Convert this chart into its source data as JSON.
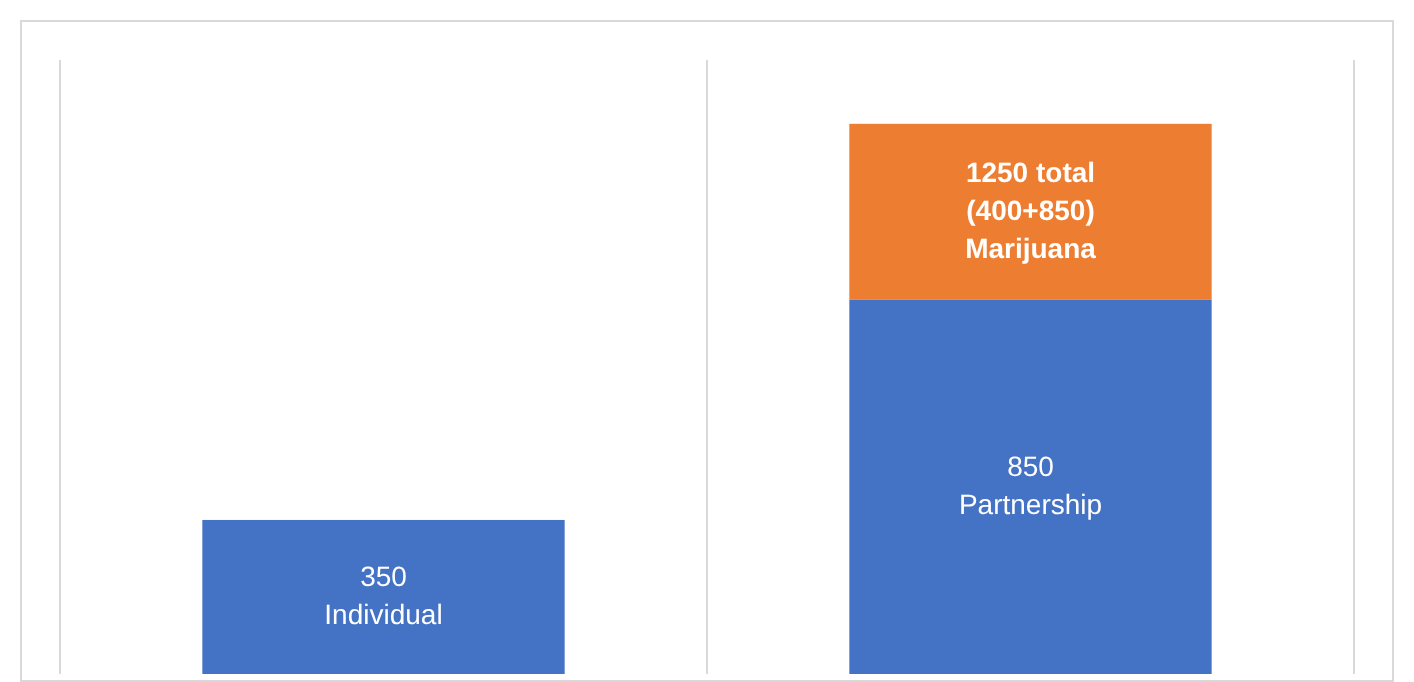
{
  "chart_data": {
    "type": "bar",
    "stacked": true,
    "categories": [
      null,
      null
    ],
    "grid": "x",
    "series": [
      {
        "color": "#4472c4",
        "values": [
          350,
          850
        ],
        "value_labels": [
          "350\nIndividual",
          "850\nPartnership"
        ]
      },
      {
        "color": "#ed7d31",
        "values": [
          null,
          400
        ],
        "value_labels": [
          null,
          "1250 total\n(400+850)\nMarijuana"
        ]
      }
    ]
  }
}
